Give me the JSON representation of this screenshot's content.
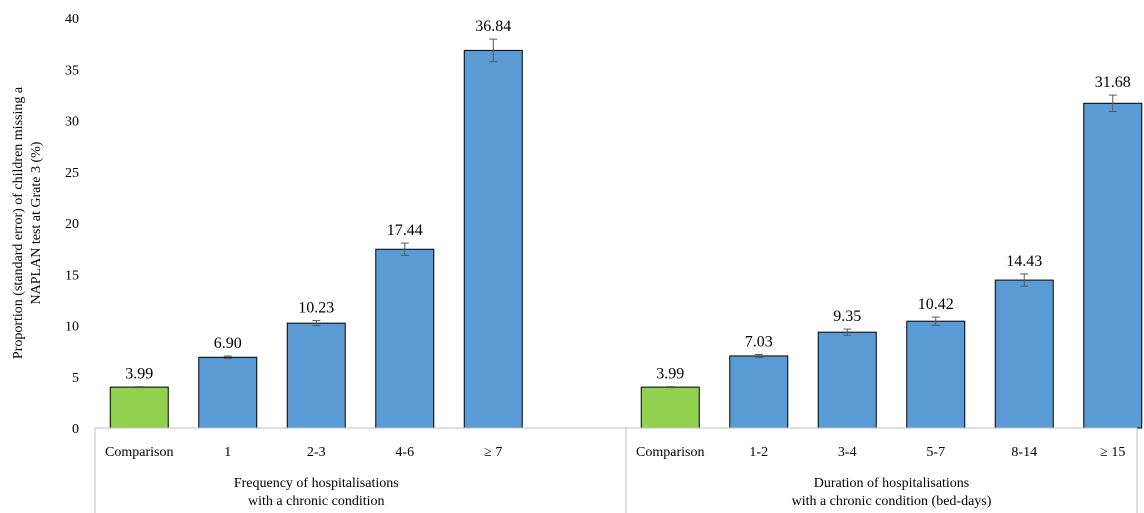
{
  "chart_data": {
    "type": "bar",
    "title": "",
    "ylabel": [
      "Proportion (standard error) of children missing a",
      "NAPLAN test at Grate 3 (%)"
    ],
    "ylim": [
      0,
      40
    ],
    "yticks": [
      0,
      5,
      10,
      15,
      20,
      25,
      30,
      35,
      40
    ],
    "grid": false,
    "legend": "none",
    "colors": {
      "comparison": "#92d050",
      "exposed": "#5b9bd5",
      "outline": "#000000",
      "error": "#595959"
    },
    "groups": [
      {
        "label": [
          "Frequency of hospitalisations",
          "with a chronic condition"
        ],
        "categories": [
          "Comparison",
          "1",
          "2-3",
          "4-6",
          "≥ 7"
        ],
        "values": [
          3.99,
          6.9,
          10.23,
          17.44,
          36.84
        ],
        "value_labels": [
          "3.99",
          "6.90",
          "10.23",
          "17.44",
          "36.84"
        ],
        "errors": [
          0.05,
          0.12,
          0.25,
          0.6,
          1.1
        ]
      },
      {
        "label": [
          "Duration of hospitalisations",
          "with a chronic condition (bed-days)"
        ],
        "categories": [
          "Comparison",
          "1-2",
          "3-4",
          "5-7",
          "8-14",
          "≥ 15"
        ],
        "values": [
          3.99,
          7.03,
          9.35,
          10.42,
          14.43,
          31.68
        ],
        "value_labels": [
          "3.99",
          "7.03",
          "9.35",
          "10.42",
          "14.43",
          "31.68"
        ],
        "errors": [
          0.05,
          0.15,
          0.3,
          0.4,
          0.6,
          0.8
        ]
      }
    ]
  }
}
